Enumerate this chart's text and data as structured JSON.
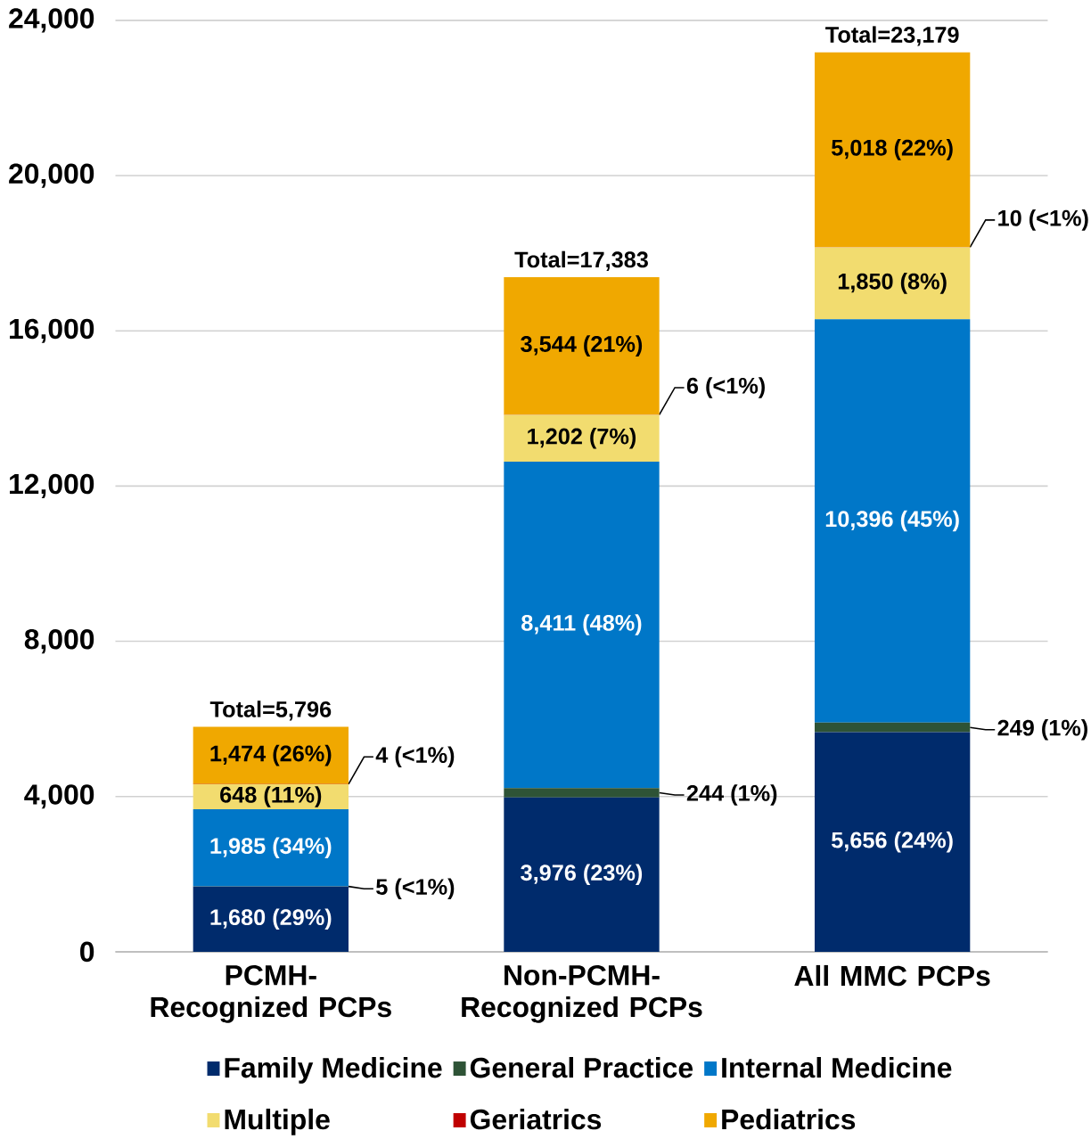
{
  "chart_data": {
    "type": "bar",
    "stacked": true,
    "categories": [
      "PCMH-Recognized PCPs",
      "Non-PCMH-Recognized PCPs",
      "All MMC PCPs"
    ],
    "series": [
      {
        "name": "Family Medicine",
        "color": "#002b6c",
        "values": [
          1680,
          3976,
          5656
        ],
        "value_labels": [
          "1,680 (29%)",
          "3,976 (23%)",
          "5,656 (24%)"
        ]
      },
      {
        "name": "General Practice",
        "color": "#2e5336",
        "values": [
          5,
          244,
          249
        ],
        "value_labels": [
          "5 (<1%)",
          "244 (1%)",
          "249 (1%)"
        ]
      },
      {
        "name": "Internal Medicine",
        "color": "#0077c8",
        "values": [
          1985,
          8411,
          10396
        ],
        "value_labels": [
          "1,985 (34%)",
          "8,411 (48%)",
          "10,396 (45%)"
        ]
      },
      {
        "name": "Multiple",
        "color": "#f2dc6f",
        "values": [
          648,
          1202,
          1850
        ],
        "value_labels": [
          "648 (11%)",
          "1,202 (7%)",
          "1,850 (8%)"
        ]
      },
      {
        "name": "Geriatrics",
        "color": "#c00000",
        "values": [
          4,
          6,
          10
        ],
        "value_labels": [
          "4 (<1%)",
          "6 (<1%)",
          "10 (<1%)"
        ]
      },
      {
        "name": "Pediatrics",
        "color": "#f0a800",
        "values": [
          1474,
          3544,
          5018
        ],
        "value_labels": [
          "1,474 (26%)",
          "3,544 (21%)",
          "5,018 (22%)"
        ]
      }
    ],
    "totals": [
      "Total=5,796",
      "Total=17,383",
      "Total=23,179"
    ],
    "ylim": [
      0,
      24000
    ],
    "yticks": [
      {
        "value": 0,
        "label": "0"
      },
      {
        "value": 4000,
        "label": "4,000"
      },
      {
        "value": 8000,
        "label": "8,000"
      },
      {
        "value": 12000,
        "label": "12,000"
      },
      {
        "value": 16000,
        "label": "16,000"
      },
      {
        "value": 20000,
        "label": "20,000"
      },
      {
        "value": 24000,
        "label": "24,000"
      }
    ],
    "grid": "y",
    "legend": "bottom"
  }
}
